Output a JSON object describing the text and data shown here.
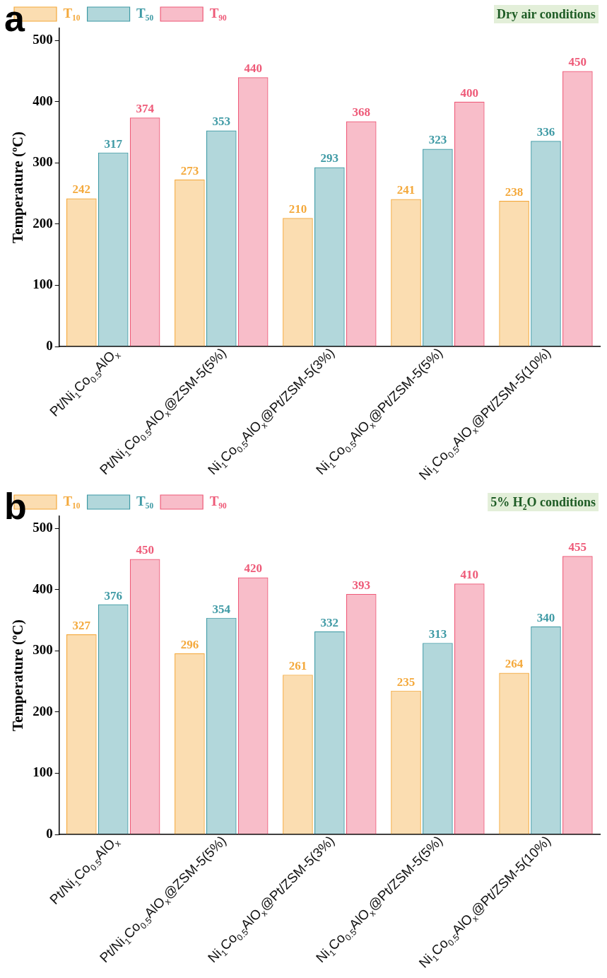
{
  "chart_data": [
    {
      "type": "bar",
      "ylabel": "Temperature (ºC)",
      "annotations": [
        "a",
        "Dry air conditions"
      ],
      "categories": [
        "Pt/Ni$_{1}$Co$_{0.5}$AlO$_{x}$",
        "Pt/Ni$_{1}$Co$_{0.5}$AlO$_{x}$@ZSM-5(5%)",
        "Ni$_{1}$Co$_{0.5}$AlO$_{x}$@Pt/ZSM-5(3%)",
        "Ni$_{1}$Co$_{0.5}$AlO$_{x}$@Pt/ZSM-5(5%)",
        "Ni$_{1}$Co$_{0.5}$AlO$_{x}$@Pt/ZSM-5(10%)"
      ],
      "series": [
        {
          "name": "T₁₀",
          "color": "#f4a93c",
          "values": [
            242,
            273,
            210,
            241,
            238
          ]
        },
        {
          "name": "T₅₀",
          "color": "#3f9aa5",
          "values": [
            317,
            353,
            293,
            323,
            336
          ]
        },
        {
          "name": "T₉₀",
          "color": "#ee5a78",
          "values": [
            374,
            440,
            368,
            400,
            450
          ]
        }
      ],
      "ylim": [
        0,
        520
      ],
      "yticks": [
        0,
        100,
        200,
        300,
        400,
        500
      ],
      "grid": false,
      "legend": "top left",
      "data_labels": true
    },
    {
      "type": "bar",
      "ylabel": "Temperature (ºC)",
      "annotations": [
        "b",
        "5% H$_{2}$O conditions"
      ],
      "categories": [
        "Pt/Ni$_{1}$Co$_{0.5}$AlO$_{x}$",
        "Pt/Ni$_{1}$Co$_{0.5}$AlO$_{x}$@ZSM-5(5%)",
        "Ni$_{1}$Co$_{0.5}$AlO$_{x}$@Pt/ZSM-5(3%)",
        "Ni$_{1}$Co$_{0.5}$AlO$_{x}$@Pt/ZSM-5(5%)",
        "Ni$_{1}$Co$_{0.5}$AlO$_{x}$@Pt/ZSM-5(10%)"
      ],
      "series": [
        {
          "name": "T₁₀",
          "color": "#f4a93c",
          "values": [
            327,
            296,
            261,
            235,
            264
          ]
        },
        {
          "name": "T₅₀",
          "color": "#3f9aa5",
          "values": [
            376,
            354,
            332,
            313,
            340
          ]
        },
        {
          "name": "T₉₀",
          "color": "#ee5a78",
          "values": [
            450,
            420,
            393,
            410,
            455
          ]
        }
      ],
      "ylim": [
        0,
        520
      ],
      "yticks": [
        0,
        100,
        200,
        300,
        400,
        500
      ],
      "grid": false,
      "legend": "top left",
      "data_labels": true
    }
  ]
}
